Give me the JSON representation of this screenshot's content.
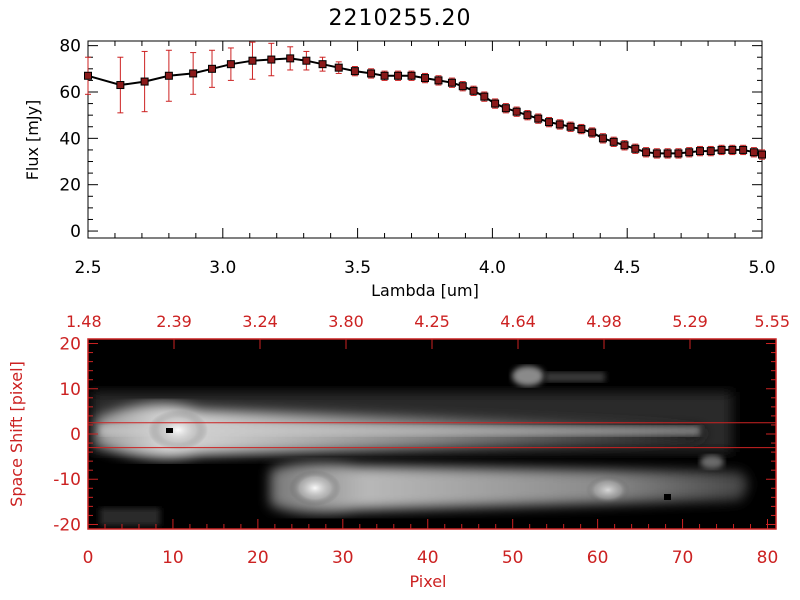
{
  "title": "2210255.20",
  "chart_data": [
    {
      "type": "line",
      "xlabel": "Lambda [um]",
      "ylabel": "Flux [mJy]",
      "xlim": [
        2.5,
        5.0
      ],
      "ylim": [
        -3,
        82
      ],
      "x_ticks": [
        "2.5",
        "3.0",
        "3.5",
        "4.0",
        "4.5",
        "5.0"
      ],
      "x_tick_values": [
        2.5,
        3.0,
        3.5,
        4.0,
        4.5,
        5.0
      ],
      "y_ticks": [
        "0",
        "20",
        "40",
        "60",
        "80"
      ],
      "y_tick_values": [
        0,
        20,
        40,
        60,
        80
      ],
      "colors": {
        "line": "#000000",
        "marker": "#8b1a1a",
        "errorbar": "#cc2222"
      },
      "series": [
        {
          "x": [
            2.5,
            2.62,
            2.71,
            2.8,
            2.89,
            2.96,
            3.03,
            3.11,
            3.18,
            3.25,
            3.31,
            3.37,
            3.43,
            3.49,
            3.55,
            3.6,
            3.65,
            3.7,
            3.75,
            3.8,
            3.85,
            3.89,
            3.93,
            3.97,
            4.01,
            4.05,
            4.09,
            4.13,
            4.17,
            4.21,
            4.25,
            4.29,
            4.33,
            4.37,
            4.41,
            4.45,
            4.49,
            4.53,
            4.57,
            4.61,
            4.65,
            4.69,
            4.73,
            4.77,
            4.81,
            4.85,
            4.89,
            4.93,
            4.97,
            5.0
          ],
          "y": [
            67,
            63,
            64.5,
            67,
            68,
            70,
            72,
            73.5,
            74,
            74.5,
            73.5,
            72,
            70.5,
            69,
            68,
            67,
            67,
            67,
            66,
            65,
            64,
            62.5,
            60.5,
            58,
            55,
            53,
            51.5,
            50,
            48.5,
            47,
            46,
            45,
            44,
            42.5,
            40,
            38.5,
            37,
            35.5,
            34,
            33.5,
            33.5,
            33.5,
            34,
            34.5,
            34.5,
            35,
            35,
            35,
            34,
            33
          ],
          "err": [
            8,
            12,
            13,
            11,
            9,
            8,
            7,
            8,
            7,
            5,
            4,
            3,
            2.5,
            2,
            2,
            2,
            2,
            2,
            2,
            2,
            2,
            2,
            2,
            2,
            2,
            2,
            2,
            2,
            2,
            2,
            2,
            2,
            2,
            2,
            2,
            2,
            2,
            2,
            2,
            2,
            2,
            2,
            2,
            2,
            2,
            2,
            2,
            2,
            2,
            2
          ]
        }
      ]
    },
    {
      "type": "heatmap",
      "xlabel": "Pixel",
      "ylabel": "Space Shift [pixel]",
      "xlim": [
        0,
        81
      ],
      "ylim": [
        -21,
        21
      ],
      "x_ticks": [
        "0",
        "10",
        "20",
        "30",
        "40",
        "50",
        "60",
        "70",
        "80"
      ],
      "x_tick_values": [
        0,
        10,
        20,
        30,
        40,
        50,
        60,
        70,
        80
      ],
      "y_ticks": [
        "-20",
        "-10",
        "0",
        "10",
        "20"
      ],
      "y_tick_values": [
        -20,
        -10,
        0,
        10,
        20
      ],
      "top_ticks": [
        "1.48",
        "2.39",
        "3.24",
        "3.80",
        "4.25",
        "4.64",
        "4.98",
        "5.29",
        "5.55"
      ],
      "extraction_lines_y": [
        2.5,
        -3
      ],
      "colors": {
        "axis": "#cc2222",
        "line": "#cc2222"
      }
    }
  ]
}
